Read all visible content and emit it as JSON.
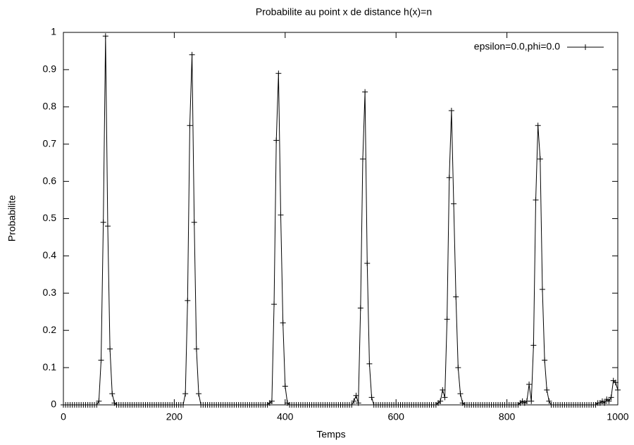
{
  "chart_data": {
    "type": "line",
    "title": "Probabilite au point x de distance h(x)=n",
    "xlabel": "Temps",
    "ylabel": "Probabilite",
    "x": [
      0,
      4,
      8,
      12,
      16,
      20,
      24,
      28,
      32,
      36,
      40,
      44,
      48,
      52,
      56,
      60,
      64,
      68,
      72,
      76,
      80,
      84,
      88,
      92,
      96,
      100,
      104,
      108,
      112,
      116,
      120,
      124,
      128,
      132,
      136,
      140,
      144,
      148,
      152,
      156,
      160,
      164,
      168,
      172,
      176,
      180,
      184,
      188,
      192,
      196,
      200,
      204,
      208,
      212,
      216,
      220,
      224,
      228,
      232,
      236,
      240,
      244,
      248,
      252,
      256,
      260,
      264,
      268,
      272,
      276,
      280,
      284,
      288,
      292,
      296,
      300,
      304,
      308,
      312,
      316,
      320,
      324,
      328,
      332,
      336,
      340,
      344,
      348,
      352,
      356,
      360,
      364,
      368,
      372,
      376,
      380,
      384,
      388,
      392,
      396,
      400,
      404,
      408,
      412,
      416,
      420,
      424,
      428,
      432,
      436,
      440,
      444,
      448,
      452,
      456,
      460,
      464,
      468,
      472,
      476,
      480,
      484,
      488,
      492,
      496,
      500,
      504,
      508,
      512,
      516,
      520,
      524,
      528,
      532,
      536,
      540,
      544,
      548,
      552,
      556,
      560,
      564,
      568,
      572,
      576,
      580,
      584,
      588,
      592,
      596,
      600,
      604,
      608,
      612,
      616,
      620,
      624,
      628,
      632,
      636,
      640,
      644,
      648,
      652,
      656,
      660,
      664,
      668,
      672,
      676,
      680,
      684,
      688,
      692,
      696,
      700,
      704,
      708,
      712,
      716,
      720,
      724,
      728,
      732,
      736,
      740,
      744,
      748,
      752,
      756,
      760,
      764,
      768,
      772,
      776,
      780,
      784,
      788,
      792,
      796,
      800,
      804,
      808,
      812,
      816,
      820,
      824,
      828,
      832,
      836,
      840,
      844,
      848,
      852,
      856,
      860,
      864,
      868,
      872,
      876,
      880,
      884,
      888,
      892,
      896,
      900,
      904,
      908,
      912,
      916,
      920,
      924,
      928,
      932,
      936,
      940,
      944,
      948,
      952,
      956,
      960,
      964,
      968,
      972,
      976,
      980,
      984,
      988,
      992,
      996,
      1000
    ],
    "series": [
      {
        "name": "epsilon=0.0,phi=0.0",
        "color": "#000000",
        "values": [
          0,
          0,
          0,
          0,
          0,
          0,
          0,
          0,
          0,
          0,
          0,
          0,
          0,
          0,
          0,
          0,
          0.01,
          0.12,
          0.49,
          0.99,
          0.48,
          0.15,
          0.03,
          0.005,
          0,
          0,
          0,
          0,
          0,
          0,
          0,
          0,
          0,
          0,
          0,
          0,
          0,
          0,
          0,
          0,
          0,
          0,
          0,
          0,
          0,
          0,
          0,
          0,
          0,
          0,
          0,
          0,
          0,
          0,
          0,
          0.03,
          0.28,
          0.75,
          0.94,
          0.49,
          0.15,
          0.03,
          0,
          0,
          0,
          0,
          0,
          0,
          0,
          0,
          0,
          0,
          0,
          0,
          0,
          0,
          0,
          0,
          0,
          0,
          0,
          0,
          0,
          0,
          0,
          0,
          0,
          0,
          0,
          0,
          0,
          0,
          0,
          0.005,
          0.01,
          0.27,
          0.71,
          0.89,
          0.51,
          0.22,
          0.05,
          0.005,
          0,
          0,
          0,
          0,
          0,
          0,
          0,
          0,
          0,
          0,
          0,
          0,
          0,
          0,
          0,
          0,
          0,
          0,
          0,
          0,
          0,
          0,
          0,
          0,
          0,
          0,
          0,
          0,
          0,
          0.01,
          0.025,
          0.005,
          0.26,
          0.66,
          0.84,
          0.38,
          0.11,
          0.02,
          0,
          0,
          0,
          0,
          0,
          0,
          0,
          0,
          0,
          0,
          0,
          0,
          0,
          0,
          0,
          0,
          0,
          0,
          0,
          0,
          0,
          0,
          0,
          0,
          0,
          0,
          0,
          0,
          0,
          0.005,
          0.01,
          0.04,
          0.02,
          0.23,
          0.61,
          0.79,
          0.54,
          0.29,
          0.1,
          0.03,
          0.005,
          0,
          0,
          0,
          0,
          0,
          0,
          0,
          0,
          0,
          0,
          0,
          0,
          0,
          0,
          0,
          0,
          0,
          0,
          0,
          0,
          0,
          0,
          0,
          0,
          0,
          0.005,
          0.01,
          0.005,
          0.01,
          0.055,
          0.01,
          0.16,
          0.55,
          0.75,
          0.66,
          0.31,
          0.12,
          0.04,
          0.01,
          0,
          0,
          0,
          0,
          0,
          0,
          0,
          0,
          0,
          0,
          0,
          0,
          0,
          0,
          0,
          0,
          0,
          0,
          0,
          0,
          0,
          0.005,
          0.005,
          0.01,
          0.005,
          0.015,
          0.01,
          0.02,
          0.065,
          0.06,
          0.04
        ]
      }
    ],
    "xlim": [
      0,
      1000
    ],
    "xticks": [
      0,
      200,
      400,
      600,
      800,
      1000
    ],
    "ylim": [
      0,
      1
    ],
    "yticks": [
      0,
      0.1,
      0.2,
      0.3,
      0.4,
      0.5,
      0.6,
      0.7,
      0.8,
      0.9,
      1
    ],
    "legend": "top right",
    "grid": false
  }
}
